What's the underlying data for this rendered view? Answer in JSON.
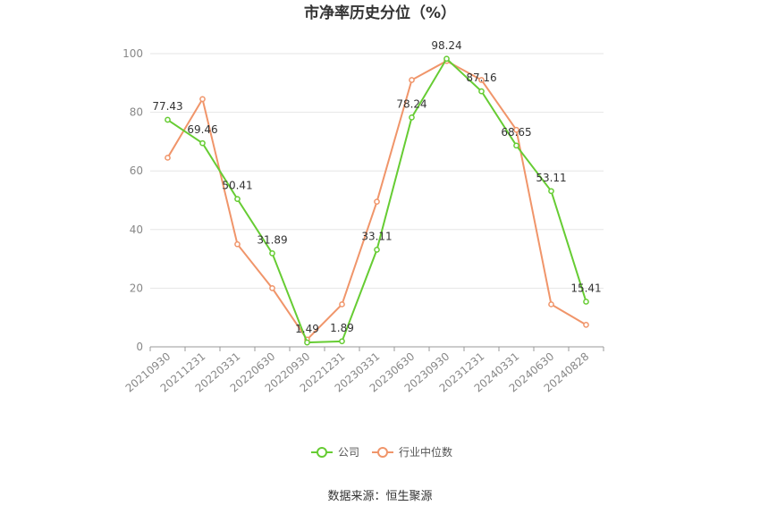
{
  "chart_data": {
    "type": "line",
    "title": "市净率历史分位（%）",
    "categories": [
      "20210930",
      "20211231",
      "20220331",
      "20220630",
      "20220930",
      "20221231",
      "20230331",
      "20230630",
      "20230930",
      "20231231",
      "20240331",
      "20240630",
      "20240828"
    ],
    "ylim": [
      0,
      100
    ],
    "yticks": [
      0,
      20,
      40,
      60,
      80,
      100
    ],
    "grid": true,
    "legend_position": "bottom-center",
    "series": [
      {
        "name": "公司",
        "color": "#66cc33",
        "values": [
          77.43,
          69.46,
          50.41,
          31.89,
          1.49,
          1.89,
          33.11,
          78.24,
          98.24,
          87.16,
          68.65,
          53.11,
          15.41
        ],
        "labels": [
          "77.43",
          "69.46",
          "50.41",
          "31.89",
          "1.49",
          "1.89",
          "33.11",
          "78.24",
          "98.24",
          "87.16",
          "68.65",
          "53.11",
          "15.41"
        ]
      },
      {
        "name": "行业中位数",
        "color": "#f0956a",
        "values": [
          64.5,
          84.5,
          35,
          20,
          2.5,
          14.5,
          49.5,
          91,
          97.5,
          91,
          74,
          14.5,
          7.5
        ]
      }
    ]
  },
  "source": "数据来源：恒生聚源"
}
